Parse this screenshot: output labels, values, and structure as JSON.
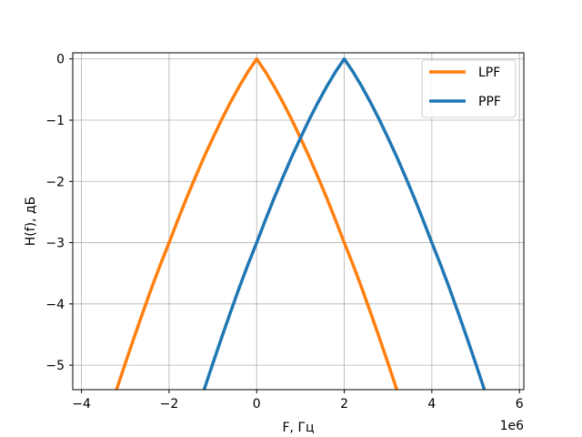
{
  "chart_data": {
    "type": "line",
    "title": "",
    "xlabel": "F, Гц",
    "ylabel": "H(f), дБ",
    "x_offset_label": "1e6",
    "x_scale": 1000000,
    "xlim": [
      -4.2,
      6.1
    ],
    "ylim": [
      -5.4,
      0.1
    ],
    "xticks": [
      -4,
      -2,
      0,
      2,
      4,
      6
    ],
    "xtick_labels": [
      "−4",
      "−2",
      "0",
      "2",
      "4",
      "6"
    ],
    "yticks": [
      0,
      -1,
      -2,
      -3,
      -4,
      -5
    ],
    "ytick_labels": [
      "0",
      "−1",
      "−2",
      "−3",
      "−4",
      "−5"
    ],
    "grid": true,
    "legend_position": "top-right",
    "series": [
      {
        "name": "LPF",
        "color": "#ff7f0e",
        "x": [
          -3.2,
          -3.0,
          -2.8,
          -2.6,
          -2.4,
          -2.2,
          -2.0,
          -1.8,
          -1.6,
          -1.4,
          -1.2,
          -1.0,
          -0.8,
          -0.6,
          -0.4,
          -0.2,
          0.0,
          0.2,
          0.4,
          0.6,
          0.8,
          1.0,
          1.2,
          1.4,
          1.6,
          1.8,
          2.0,
          2.2,
          2.4,
          2.6,
          2.8,
          3.0,
          3.2
        ],
        "y": [
          -5.4,
          -4.97,
          -4.55,
          -4.14,
          -3.74,
          -3.36,
          -3.0,
          -2.63,
          -2.27,
          -1.93,
          -1.6,
          -1.29,
          -0.99,
          -0.71,
          -0.45,
          -0.21,
          0.0,
          -0.21,
          -0.45,
          -0.71,
          -0.99,
          -1.29,
          -1.6,
          -1.93,
          -2.27,
          -2.63,
          -3.0,
          -3.36,
          -3.74,
          -4.14,
          -4.55,
          -4.97,
          -5.4
        ]
      },
      {
        "name": "PPF",
        "color": "#1f77b4",
        "x": [
          -1.2,
          -1.0,
          -0.8,
          -0.6,
          -0.4,
          -0.2,
          0.0,
          0.2,
          0.4,
          0.6,
          0.8,
          1.0,
          1.2,
          1.4,
          1.6,
          1.8,
          2.0,
          2.2,
          2.4,
          2.6,
          2.8,
          3.0,
          3.2,
          3.4,
          3.6,
          3.8,
          4.0,
          4.2,
          4.4,
          4.6,
          4.8,
          5.0,
          5.2
        ],
        "y": [
          -5.4,
          -4.97,
          -4.55,
          -4.14,
          -3.74,
          -3.36,
          -3.0,
          -2.63,
          -2.27,
          -1.93,
          -1.6,
          -1.29,
          -0.99,
          -0.71,
          -0.45,
          -0.21,
          0.0,
          -0.21,
          -0.45,
          -0.71,
          -0.99,
          -1.29,
          -1.6,
          -1.93,
          -2.27,
          -2.63,
          -3.0,
          -3.36,
          -3.74,
          -4.14,
          -4.55,
          -4.97,
          -5.4
        ]
      }
    ]
  }
}
